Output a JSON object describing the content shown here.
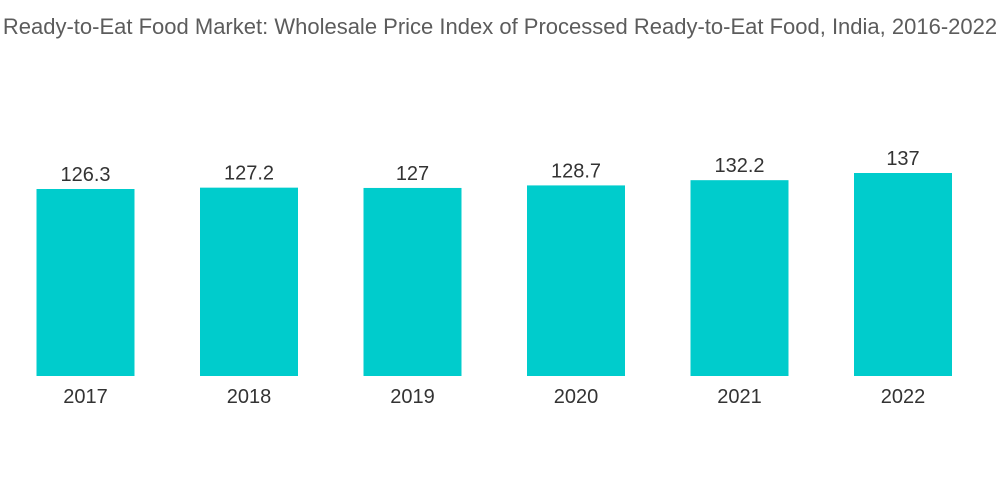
{
  "chart_data": {
    "type": "bar",
    "title": "Ready-to-Eat Food Market: Wholesale Price Index of Processed Ready-to-Eat Food, India, 2016-2022",
    "categories": [
      "2017",
      "2018",
      "2019",
      "2020",
      "2021",
      "2022"
    ],
    "values": [
      126.3,
      127.2,
      127,
      128.7,
      132.2,
      137
    ],
    "value_labels": [
      "126.3",
      "127.2",
      "127",
      "128.7",
      "132.2",
      "137"
    ],
    "xlabel": "",
    "ylabel": "",
    "y_axis_visible": false,
    "grid": false,
    "legend": "none",
    "bar_color": "#00cccc"
  }
}
